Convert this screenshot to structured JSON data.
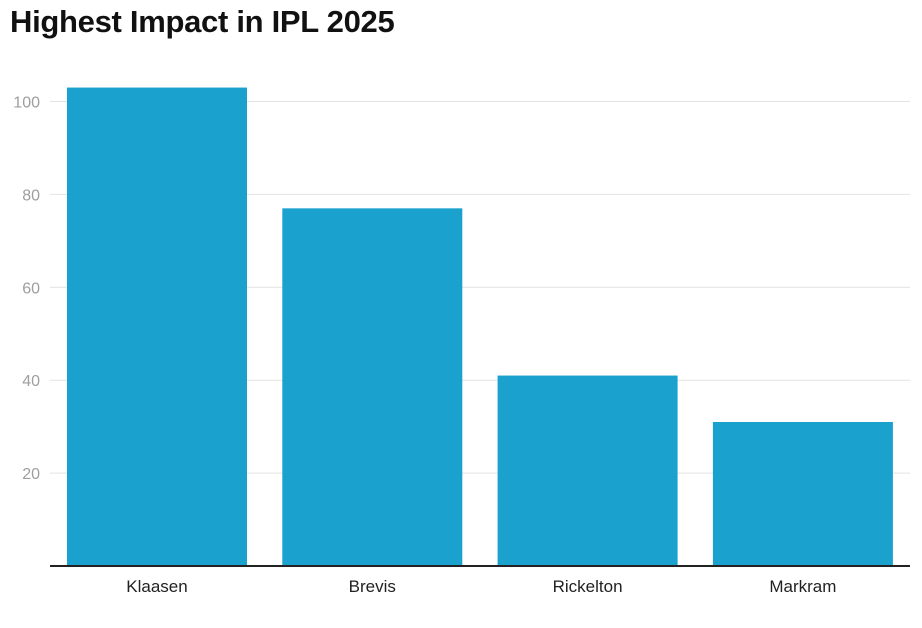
{
  "chart_data": {
    "type": "bar",
    "title": "Highest Impact in IPL 2025",
    "categories": [
      "Klaasen",
      "Brevis",
      "Rickelton",
      "Markram"
    ],
    "values": [
      103,
      77,
      41,
      31
    ],
    "ylim": [
      0,
      105
    ],
    "yticks": [
      20,
      40,
      60,
      80,
      100
    ],
    "xlabel": "",
    "ylabel": "",
    "grid": true,
    "legend": "none",
    "bar_color": "#1aa1cd",
    "grid_color": "#e2e2e2",
    "axis_color": "#222222"
  }
}
